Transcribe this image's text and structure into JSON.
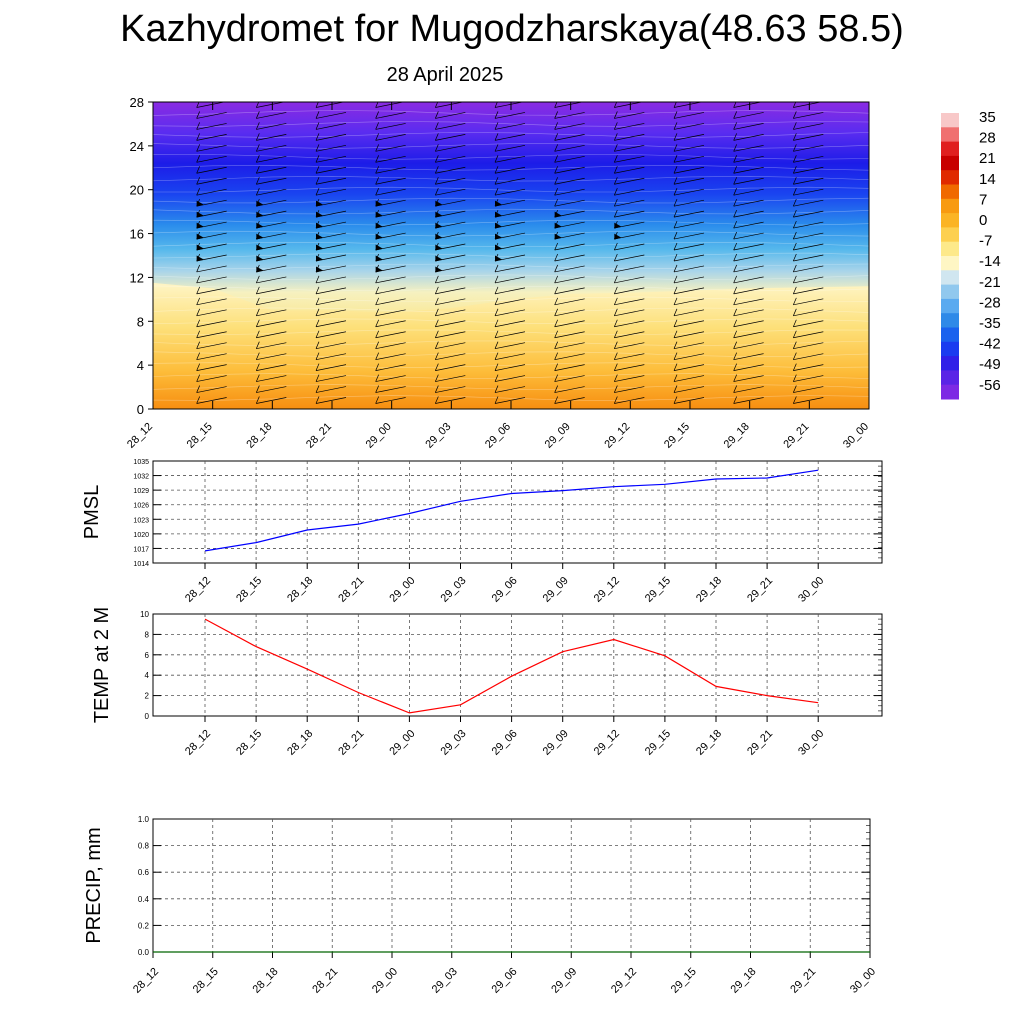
{
  "header": {
    "title": "Kazhydromet for Mugodzharskaya(48.63 58.5)",
    "subtitle": "28 April 2025"
  },
  "colorbar": {
    "labels": [
      "35",
      "28",
      "21",
      "14",
      "7",
      "0",
      "-7",
      "-14",
      "-21",
      "-28",
      "-35",
      "-42",
      "-49",
      "-56"
    ]
  },
  "time_labels": [
    "28_12",
    "28_15",
    "28_18",
    "28_21",
    "29_00",
    "29_03",
    "29_06",
    "29_09",
    "29_12",
    "29_15",
    "29_18",
    "29_21",
    "30_00"
  ],
  "chart_data": [
    {
      "type": "heatmap",
      "name": "temperature-wind cross-section",
      "x": [
        "28_12",
        "28_15",
        "28_18",
        "28_21",
        "29_00",
        "29_03",
        "29_06",
        "29_09",
        "29_12",
        "29_15",
        "29_18",
        "29_21",
        "30_00"
      ],
      "ylim": [
        0,
        28
      ],
      "yticks": [
        "0",
        "4",
        "8",
        "12",
        "16",
        "20",
        "24",
        "28"
      ],
      "colorbar_range": [
        -56,
        35
      ],
      "freezing_level": [
        11.5,
        11.0,
        9.0,
        9.0,
        8.8,
        9.2,
        10.0,
        10.5,
        10.6,
        10.8,
        11.0,
        11.1,
        11.2
      ],
      "strong_wind_top": [
        null,
        19,
        19,
        19,
        19,
        19,
        19,
        18,
        17,
        null,
        null,
        null,
        null
      ],
      "strong_wind_bottom": [
        null,
        14,
        13,
        13,
        13,
        13,
        14,
        16,
        16,
        null,
        null,
        null,
        null
      ]
    },
    {
      "type": "line",
      "ylabel": "PMSL",
      "x": [
        "28_12",
        "28_15",
        "28_18",
        "28_21",
        "29_00",
        "29_03",
        "29_06",
        "29_09",
        "29_12",
        "29_15",
        "29_18",
        "29_21",
        "30_00"
      ],
      "values": [
        1016.5,
        1018.2,
        1020.8,
        1022.0,
        1024.2,
        1026.7,
        1028.3,
        1028.9,
        1029.7,
        1030.2,
        1031.3,
        1031.5,
        1033.1
      ],
      "ylim": [
        1014,
        1035
      ],
      "yticks": [
        "1014",
        "1017",
        "1020",
        "1023",
        "1026",
        "1029",
        "1032",
        "1035"
      ],
      "color": "#0000ff"
    },
    {
      "type": "line",
      "ylabel": "TEMP at 2 M",
      "x": [
        "28_12",
        "28_15",
        "28_18",
        "28_21",
        "29_00",
        "29_03",
        "29_06",
        "29_09",
        "29_12",
        "29_15",
        "29_18",
        "29_21",
        "30_00"
      ],
      "values": [
        9.5,
        6.8,
        4.6,
        2.3,
        0.3,
        1.1,
        3.9,
        6.3,
        7.5,
        5.9,
        2.9,
        2.0,
        1.3
      ],
      "ylim": [
        0,
        10
      ],
      "yticks": [
        "0",
        "2",
        "4",
        "6",
        "8",
        "10"
      ],
      "color": "#ff0000"
    },
    {
      "type": "line",
      "ylabel": "PRECIP, mm",
      "x": [
        "28_12",
        "28_15",
        "28_18",
        "28_21",
        "29_00",
        "29_03",
        "29_06",
        "29_09",
        "29_12",
        "29_15",
        "29_18",
        "29_21",
        "30_00"
      ],
      "values": [
        0,
        0,
        0,
        0,
        0,
        0,
        0,
        0,
        0,
        0,
        0,
        0,
        0
      ],
      "ylim": [
        0,
        1.0
      ],
      "yticks": [
        "0.0",
        "0.2",
        "0.4",
        "0.6",
        "0.8",
        "1.0"
      ],
      "color": "#006400"
    }
  ]
}
